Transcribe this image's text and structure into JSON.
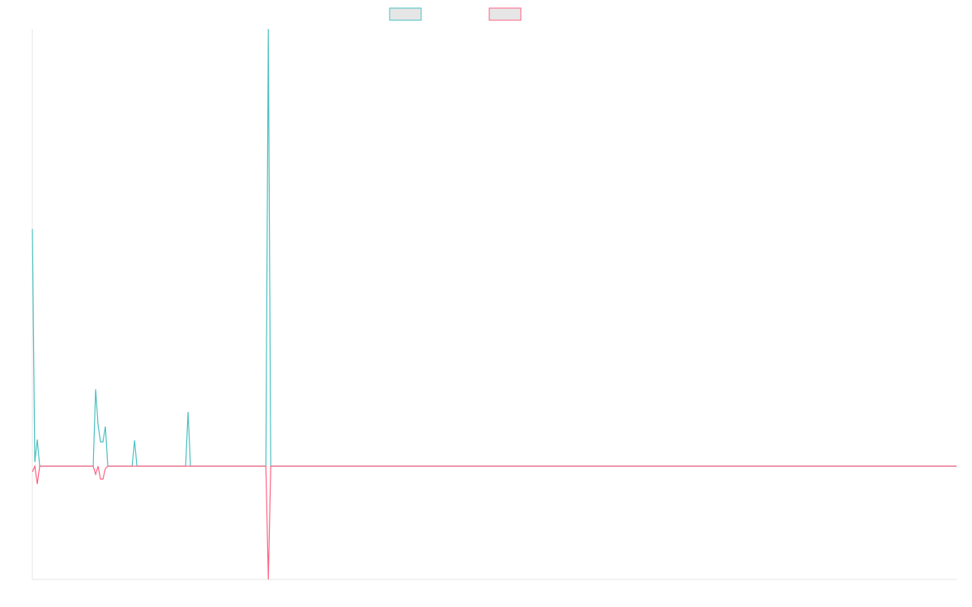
{
  "chart_data": {
    "type": "line",
    "x": [
      0,
      1,
      2,
      3,
      25,
      26,
      27,
      28,
      29,
      30,
      31,
      41,
      42,
      43,
      63,
      64,
      65,
      96,
      97,
      98,
      107,
      380
    ],
    "xlim": [
      0,
      380
    ],
    "ylim": [
      -140,
      540
    ],
    "series": [
      {
        "color": "#4bc0c0",
        "values": [
          293,
          5,
          33,
          0,
          0,
          95,
          51,
          30,
          30,
          49,
          0,
          0,
          32,
          0,
          0,
          67,
          0,
          0,
          540,
          0,
          0,
          0
        ]
      },
      {
        "color": "#ff6384",
        "values": [
          -7,
          0,
          -22,
          0,
          0,
          -10,
          0,
          -16,
          -16,
          -3,
          0,
          0,
          0,
          0,
          0,
          0,
          0,
          0,
          -140,
          0,
          0,
          0
        ]
      }
    ]
  }
}
